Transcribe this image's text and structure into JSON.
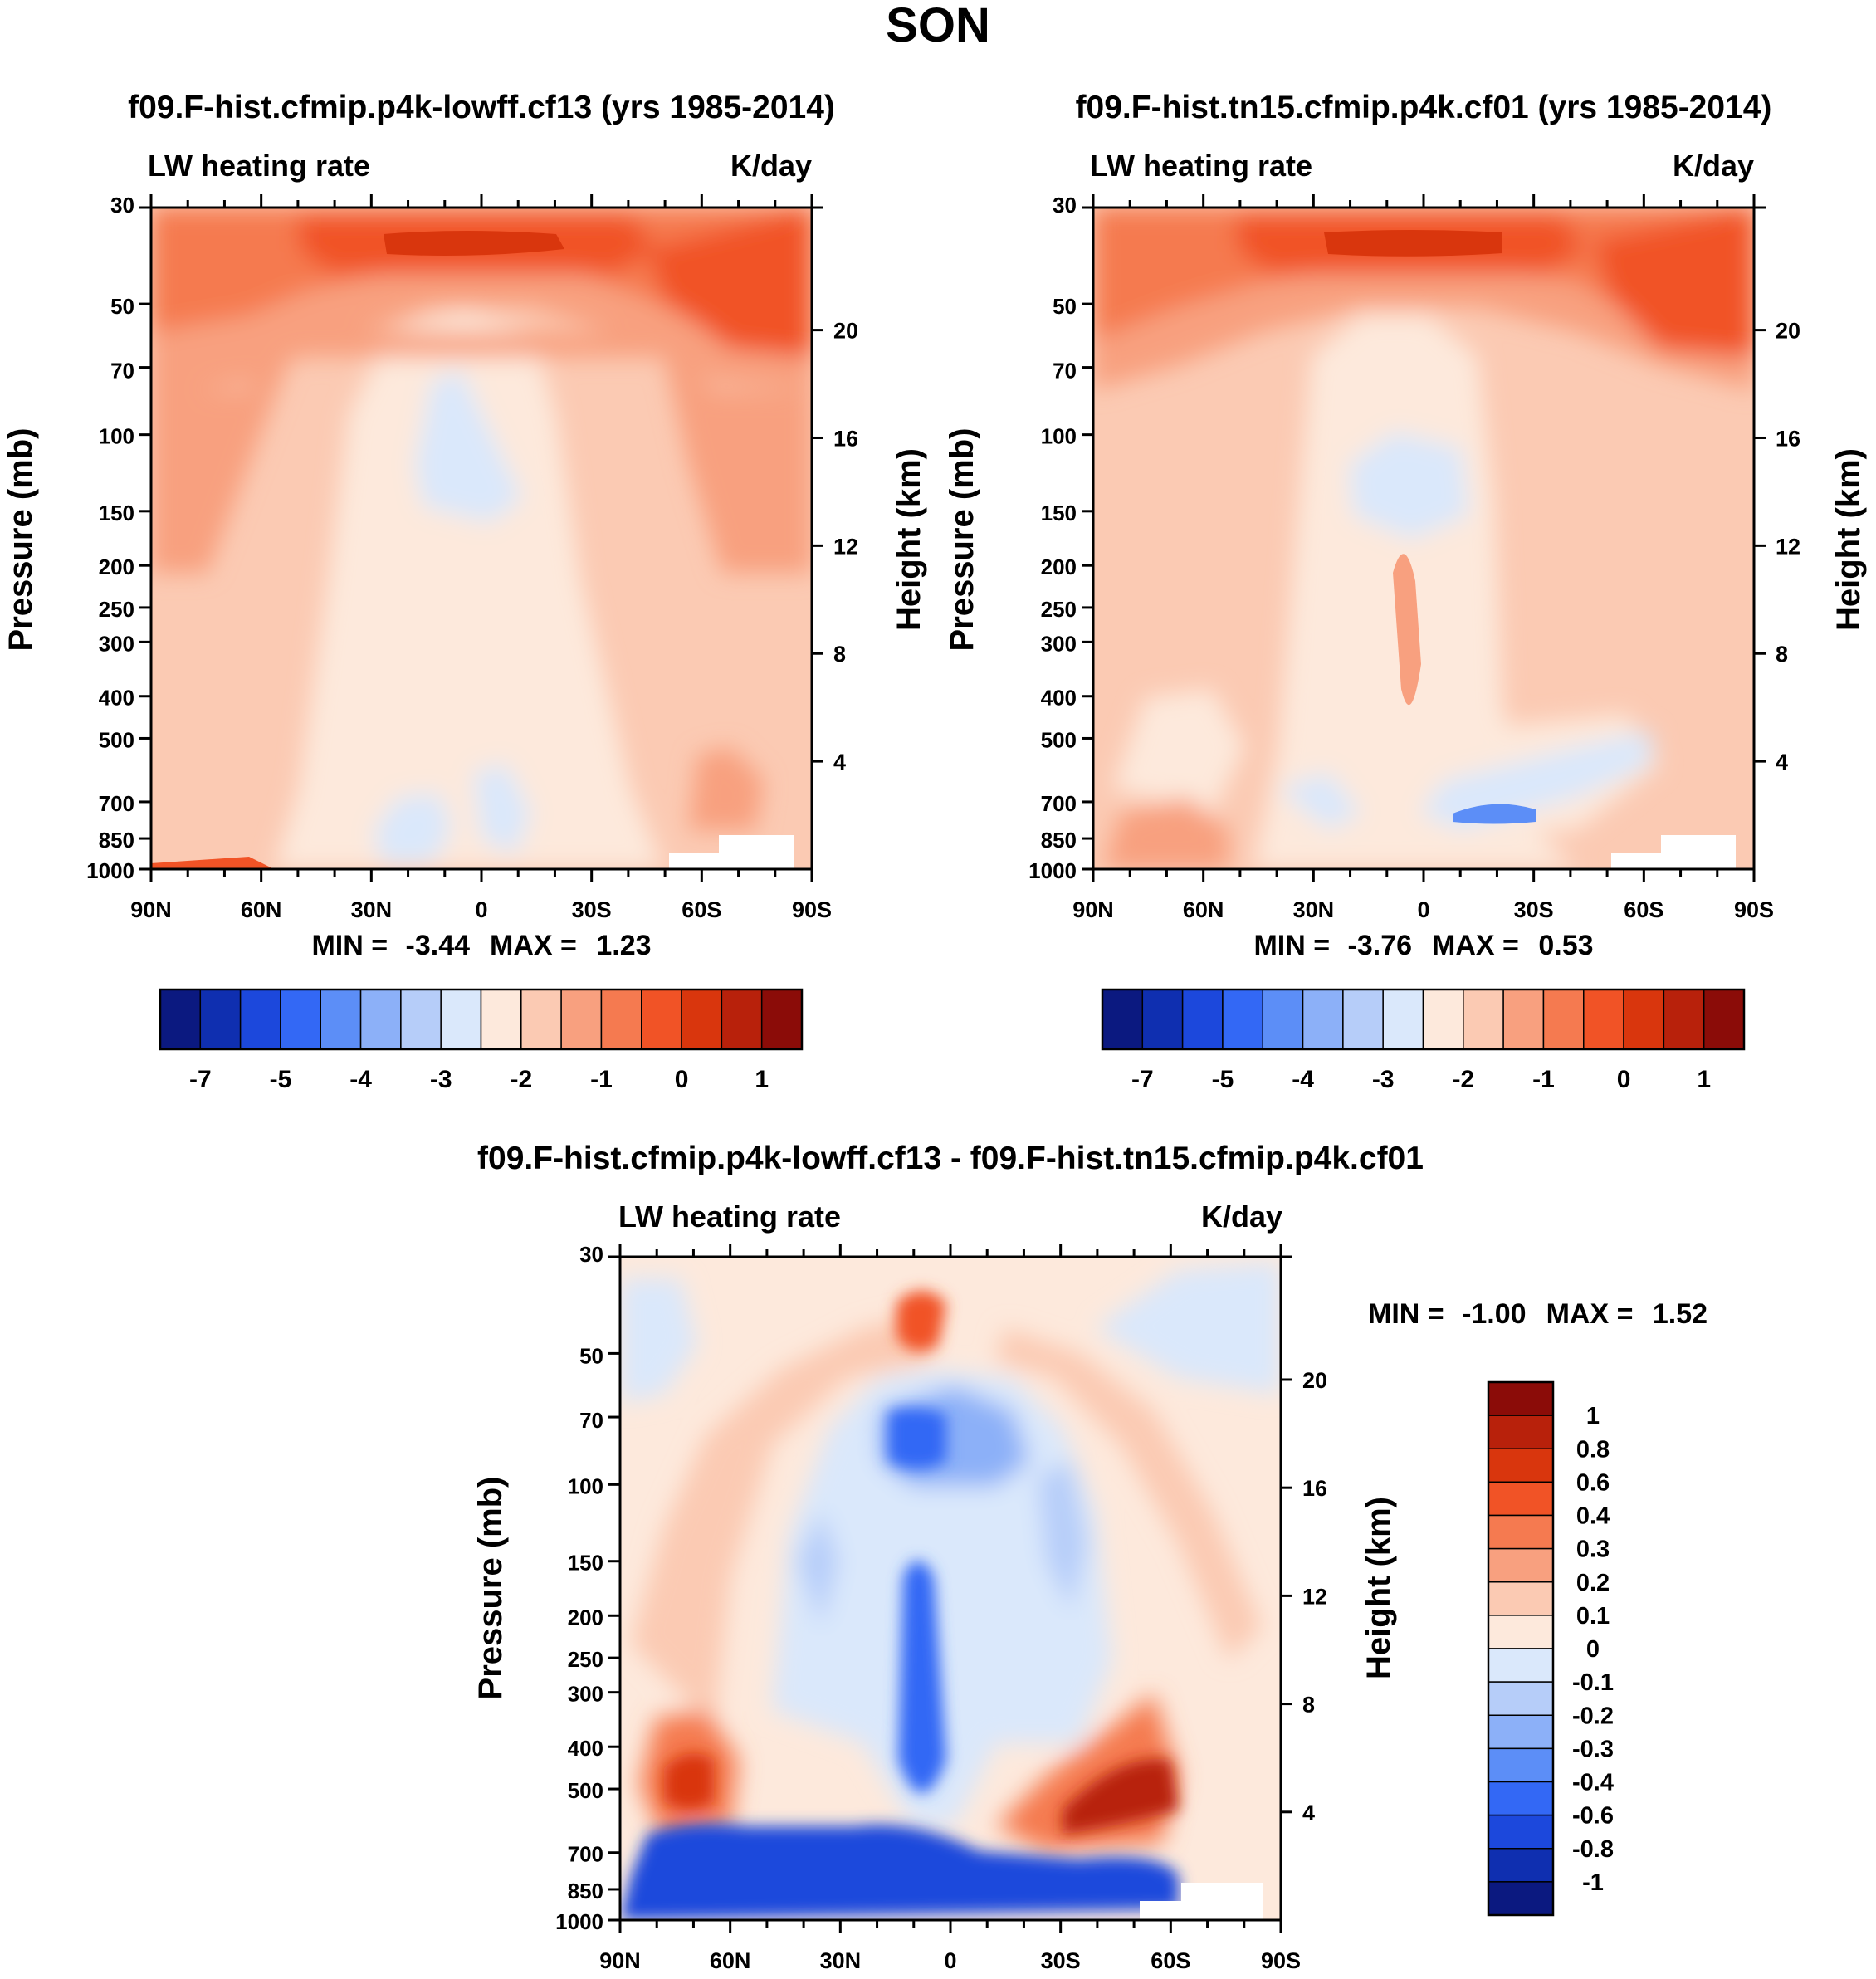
{
  "figure_title": "SON",
  "panels": [
    {
      "title": "f09.F-hist.cfmip.p4k-lowff.cf13 (yrs 1985-2014)",
      "left_label": "LW heating rate",
      "right_label": "K/day",
      "ylabel_left": "Pressure (mb)",
      "ylabel_right": "Height (km)",
      "min_label": "MIN = ",
      "min_value": "-3.44",
      "max_label": "MAX = ",
      "max_value": "1.23"
    },
    {
      "title": "f09.F-hist.tn15.cfmip.p4k.cf01 (yrs 1985-2014)",
      "left_label": "LW heating rate",
      "right_label": "K/day",
      "ylabel_left": "Pressure (mb)",
      "ylabel_right": "Height (km)",
      "min_label": "MIN = ",
      "min_value": "-3.76",
      "max_label": "MAX = ",
      "max_value": "0.53"
    },
    {
      "title": "f09.F-hist.cfmip.p4k-lowff.cf13 - f09.F-hist.tn15.cfmip.p4k.cf01",
      "left_label": "LW heating rate",
      "right_label": "K/day",
      "ylabel_left": "Pressure (mb)",
      "ylabel_right": "Height (km)",
      "min_label": "MIN = ",
      "min_value": "-1.00",
      "max_label": "MAX = ",
      "max_value": "1.52"
    }
  ],
  "colors": {
    "field_palette": [
      "#0b1980",
      "#0f2fb0",
      "#1c48dc",
      "#3368f5",
      "#5c8ef7",
      "#8cb0f8",
      "#b6cdf9",
      "#dae8fb",
      "#fde9dc",
      "#fbcab3",
      "#f8a07f",
      "#f57a50",
      "#f15326",
      "#d9360d",
      "#b8210b",
      "#8b0c08"
    ],
    "diff_palette": [
      "#0b1980",
      "#0f2fb0",
      "#1c48dc",
      "#3368f5",
      "#5c8ef7",
      "#8cb0f8",
      "#b6cdf9",
      "#dae8fb",
      "#fde9dc",
      "#fbcab3",
      "#f8a07f",
      "#f57a50",
      "#f15326",
      "#d9360d",
      "#b8210b",
      "#8b0c08"
    ]
  },
  "chart_data": [
    {
      "type": "heatmap",
      "title": "f09.F-hist.cfmip.p4k-lowff.cf13 (yrs 1985-2014)",
      "x_ticklabels": [
        "90N",
        "60N",
        "30N",
        "0",
        "30S",
        "60S",
        "90S"
      ],
      "x_range": [
        90,
        -90
      ],
      "y_ticklabels": [
        "30",
        "50",
        "70",
        "100",
        "150",
        "200",
        "250",
        "300",
        "400",
        "500",
        "700",
        "850",
        "1000"
      ],
      "y_range_mb": [
        1000,
        30
      ],
      "y_log": true,
      "height_ticklabels": [
        "20",
        "16",
        "12",
        "8",
        "4"
      ],
      "colorbar_ticklabels": [
        "-7",
        "-5",
        "-4",
        "-3",
        "-2",
        "-1",
        "0",
        "1"
      ],
      "min": -3.44,
      "max": 1.23
    },
    {
      "type": "heatmap",
      "title": "f09.F-hist.tn15.cfmip.p4k.cf01 (yrs 1985-2014)",
      "x_ticklabels": [
        "90N",
        "60N",
        "30N",
        "0",
        "30S",
        "60S",
        "90S"
      ],
      "x_range": [
        90,
        -90
      ],
      "y_ticklabels": [
        "30",
        "50",
        "70",
        "100",
        "150",
        "200",
        "250",
        "300",
        "400",
        "500",
        "700",
        "850",
        "1000"
      ],
      "y_range_mb": [
        1000,
        30
      ],
      "y_log": true,
      "height_ticklabels": [
        "20",
        "16",
        "12",
        "8",
        "4"
      ],
      "colorbar_ticklabels": [
        "-7",
        "-5",
        "-4",
        "-3",
        "-2",
        "-1",
        "0",
        "1"
      ],
      "min": -3.76,
      "max": 0.53
    },
    {
      "type": "heatmap",
      "title": "f09.F-hist.cfmip.p4k-lowff.cf13 - f09.F-hist.tn15.cfmip.p4k.cf01",
      "x_ticklabels": [
        "90N",
        "60N",
        "30N",
        "0",
        "30S",
        "60S",
        "90S"
      ],
      "x_range": [
        90,
        -90
      ],
      "y_ticklabels": [
        "30",
        "50",
        "70",
        "100",
        "150",
        "200",
        "250",
        "300",
        "400",
        "500",
        "700",
        "850",
        "1000"
      ],
      "y_range_mb": [
        1000,
        30
      ],
      "y_log": true,
      "height_ticklabels": [
        "20",
        "16",
        "12",
        "8",
        "4"
      ],
      "colorbar_ticklabels": [
        "1",
        "0.8",
        "0.6",
        "0.4",
        "0.3",
        "0.2",
        "0.1",
        "0",
        "-0.1",
        "-0.2",
        "-0.3",
        "-0.4",
        "-0.6",
        "-0.8",
        "-1"
      ],
      "min": -1.0,
      "max": 1.52
    }
  ]
}
